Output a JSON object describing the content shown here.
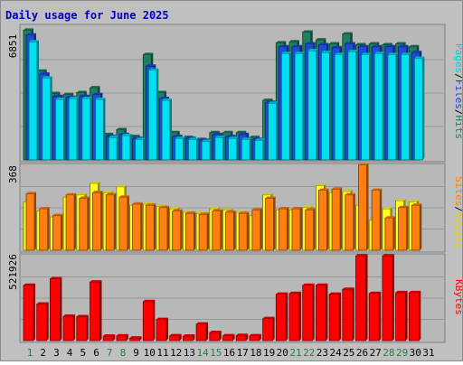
{
  "chart_data": [
    {
      "type": "bar",
      "title": "Daily usage for June 2025",
      "ylabel_max": "6851",
      "axis_label": [
        "Pages",
        "Files",
        "Hits"
      ],
      "categories": [
        "1",
        "2",
        "3",
        "4",
        "5",
        "6",
        "7",
        "8",
        "9",
        "10",
        "11",
        "12",
        "13",
        "14",
        "15",
        "16",
        "17",
        "18",
        "19",
        "20",
        "21",
        "22",
        "23",
        "24",
        "25",
        "26",
        "27",
        "28",
        "29",
        "30",
        "31"
      ],
      "weekend_days": [
        "1",
        "7",
        "8",
        "14",
        "15",
        "21",
        "22",
        "28",
        "29"
      ],
      "ylim": [
        0,
        6851
      ],
      "series": [
        {
          "name": "Hits",
          "color": "#1e8060",
          "values": [
            6650,
            4550,
            3400,
            3350,
            3450,
            3700,
            1300,
            1550,
            1200,
            5400,
            3450,
            1400,
            1150,
            1050,
            1400,
            1400,
            1400,
            1150,
            3050,
            6000,
            6050,
            6550,
            6150,
            5950,
            6450,
            5900,
            5950,
            5900,
            5950,
            5800,
            null
          ]
        },
        {
          "name": "Files",
          "color": "#1c4cd8",
          "values": [
            6400,
            4400,
            3250,
            3200,
            3250,
            3350,
            1200,
            1300,
            1100,
            4800,
            3150,
            1200,
            1100,
            1000,
            1300,
            1200,
            1300,
            1050,
            2950,
            5800,
            5800,
            5950,
            5900,
            5750,
            5950,
            5800,
            5800,
            5800,
            5800,
            5500,
            null
          ]
        },
        {
          "name": "Pages",
          "color": "#00e0f0",
          "values": [
            6050,
            4200,
            3100,
            3150,
            3150,
            3100,
            1150,
            1250,
            1050,
            4600,
            3050,
            1100,
            1050,
            950,
            1150,
            1100,
            1050,
            1000,
            2900,
            5450,
            5450,
            5600,
            5500,
            5400,
            5550,
            5400,
            5450,
            5400,
            5400,
            5200,
            null
          ]
        }
      ]
    },
    {
      "type": "bar",
      "ylabel_max": "368",
      "axis_label": [
        "Sites",
        "Visits"
      ],
      "ylim": [
        0,
        368
      ],
      "series": [
        {
          "name": "Visits",
          "color": "#ffff20",
          "values": [
            210,
            170,
            145,
            230,
            240,
            290,
            250,
            275,
            195,
            200,
            190,
            180,
            165,
            160,
            180,
            175,
            165,
            150,
            240,
            175,
            175,
            185,
            280,
            250,
            255,
            195,
            130,
            180,
            215,
            210,
            null
          ]
        },
        {
          "name": "Sites",
          "color": "#ff8010",
          "values": [
            245,
            180,
            150,
            240,
            225,
            250,
            240,
            230,
            200,
            195,
            185,
            170,
            160,
            155,
            170,
            165,
            160,
            175,
            225,
            180,
            180,
            175,
            260,
            265,
            240,
            370,
            260,
            140,
            185,
            195,
            null
          ]
        }
      ]
    },
    {
      "type": "bar",
      "ylabel_max": "521926",
      "axis_label": [
        "KBytes"
      ],
      "ylim": [
        0,
        521926
      ],
      "series": [
        {
          "name": "KBytes",
          "color": "#ff0000",
          "values": [
            340000,
            225000,
            380000,
            150000,
            147000,
            360000,
            28000,
            29000,
            16000,
            240000,
            130000,
            30000,
            28000,
            102000,
            50000,
            30000,
            32000,
            30000,
            135000,
            285000,
            290000,
            340000,
            340000,
            285000,
            315000,
            521000,
            290000,
            521000,
            295000,
            295000,
            null
          ]
        }
      ]
    }
  ]
}
